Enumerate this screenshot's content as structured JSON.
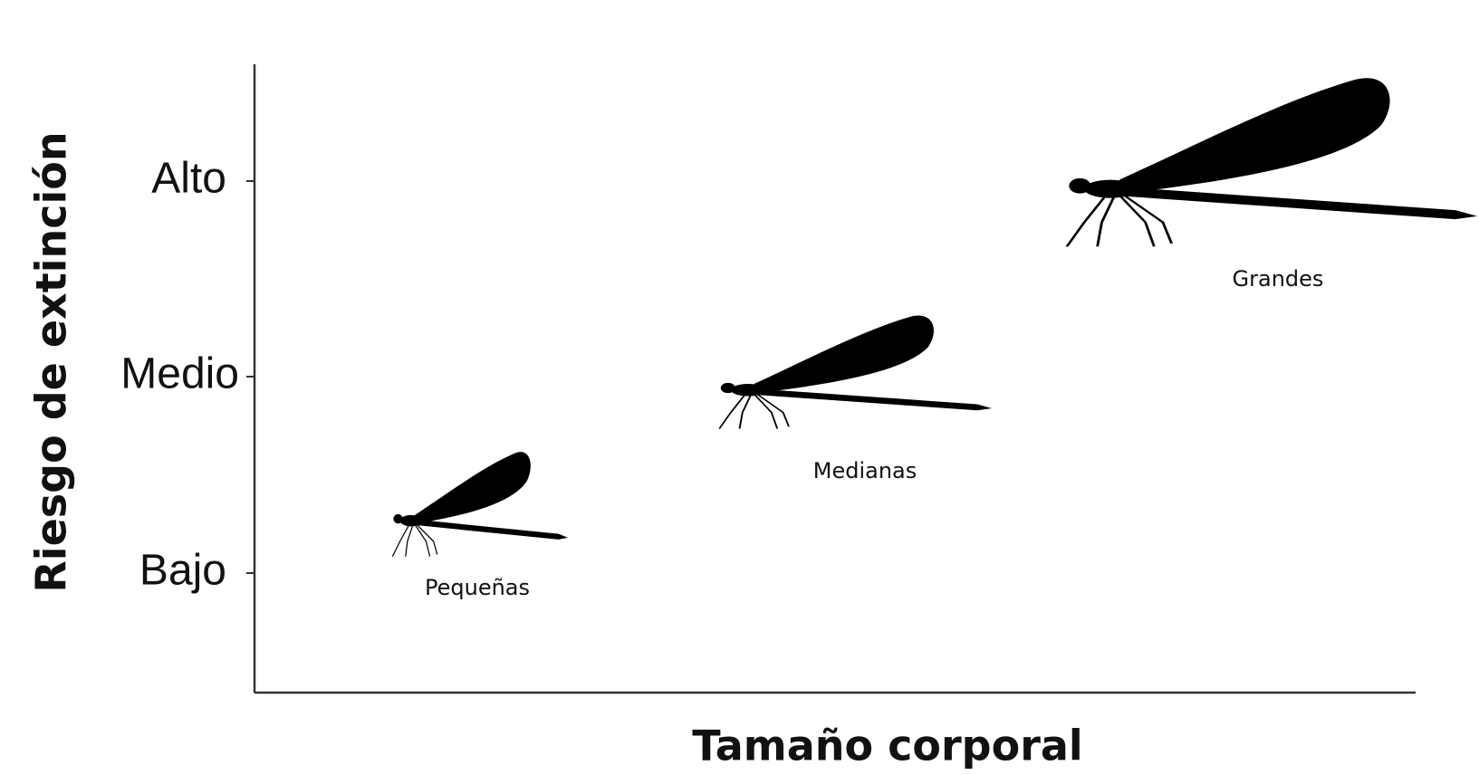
{
  "y_axis_label": "Riesgo de extinción",
  "x_axis_label": "Tamaño corporal",
  "y_levels": [
    "Bajo",
    "Medio",
    "Alto"
  ],
  "groups": [
    {
      "label": "Pequeñas"
    },
    {
      "label": "Medianas"
    },
    {
      "label": "Grandes"
    }
  ]
}
